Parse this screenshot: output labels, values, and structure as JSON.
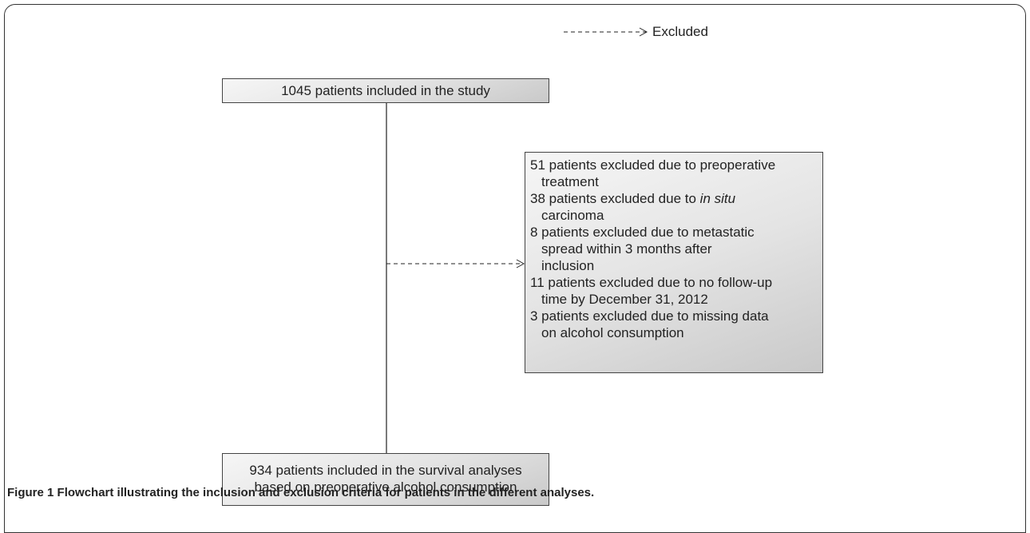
{
  "legend": {
    "label": "Excluded"
  },
  "nodes": [
    {
      "label": "1045 patients included in the study"
    },
    {
      "lines": [
        "934 patients included in the survival analyses",
        "based on preoperative alcohol consumption"
      ]
    }
  ],
  "exclusions": {
    "items": [
      {
        "lines": [
          [
            "51 patients excluded due to preoperative"
          ],
          [
            "treatment"
          ]
        ]
      },
      {
        "lines": [
          [
            "38 patients excluded due to",
            {
              "em": "in situ"
            }
          ],
          [
            "carcinoma"
          ]
        ]
      },
      {
        "lines": [
          [
            "8 patients excluded due to metastatic"
          ],
          [
            "spread within 3 months after"
          ],
          [
            "inclusion"
          ]
        ]
      },
      {
        "lines": [
          [
            "11 patients excluded due to no follow-up"
          ],
          [
            "time by December 31, 2012"
          ]
        ]
      },
      {
        "lines": [
          [
            "3  patients excluded due to missing data"
          ],
          [
            "on alcohol consumption"
          ]
        ]
      }
    ]
  },
  "caption": {
    "label": "Figure 1",
    "text": "Flowchart illustrating the inclusion and exclusion criteria for patients in the different analyses."
  }
}
